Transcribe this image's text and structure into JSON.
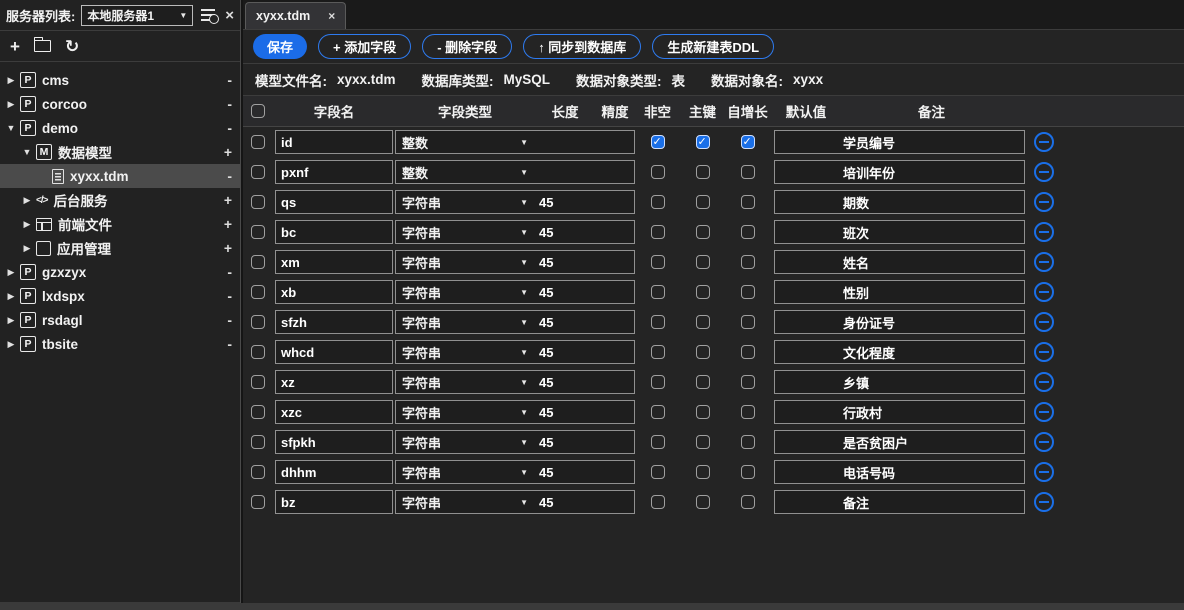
{
  "sidebar": {
    "header_label": "服务器列表:",
    "server_select": "本地服务器1",
    "close_label": "×",
    "tools": {
      "add": "+",
      "refresh": "↻"
    },
    "tree": [
      {
        "key": "cms",
        "label": "cms",
        "icon": "P",
        "level": 0,
        "arrow": "right",
        "action": "-"
      },
      {
        "key": "corcoo",
        "label": "corcoo",
        "icon": "P",
        "level": 0,
        "arrow": "right",
        "action": "-"
      },
      {
        "key": "demo",
        "label": "demo",
        "icon": "P",
        "level": 0,
        "arrow": "down",
        "action": "-"
      },
      {
        "key": "data-model",
        "label": "数据模型",
        "icon": "M",
        "level": 1,
        "arrow": "down",
        "action": "+"
      },
      {
        "key": "xyxx-tdm",
        "label": "xyxx.tdm",
        "icon": "doc",
        "level": 2,
        "arrow": "none",
        "action": "-",
        "selected": true
      },
      {
        "key": "backend-service",
        "label": "后台服务",
        "icon": "code",
        "level": 1,
        "arrow": "right",
        "action": "+"
      },
      {
        "key": "frontend-files",
        "label": "前端文件",
        "icon": "layout",
        "level": 1,
        "arrow": "right",
        "action": "+"
      },
      {
        "key": "app-management",
        "label": "应用管理",
        "icon": "grid",
        "level": 1,
        "arrow": "right",
        "action": "+"
      },
      {
        "key": "gzxzyx",
        "label": "gzxzyx",
        "icon": "P",
        "level": 0,
        "arrow": "right",
        "action": "-"
      },
      {
        "key": "lxdspx",
        "label": "lxdspx",
        "icon": "P",
        "level": 0,
        "arrow": "right",
        "action": "-"
      },
      {
        "key": "rsdagl",
        "label": "rsdagl",
        "icon": "P",
        "level": 0,
        "arrow": "right",
        "action": "-"
      },
      {
        "key": "tbsite",
        "label": "tbsite",
        "icon": "P",
        "level": 0,
        "arrow": "right",
        "action": "-"
      }
    ]
  },
  "tab": {
    "title": "xyxx.tdm",
    "close": "×"
  },
  "toolbar": {
    "save": "保存",
    "add_field": "+ 添加字段",
    "delete_field": "- 删除字段",
    "sync_db": "↑ 同步到数据库",
    "gen_ddl": "生成新建表DDL"
  },
  "info": [
    {
      "label": "模型文件名:",
      "value": "xyxx.tdm"
    },
    {
      "label": "数据库类型:",
      "value": "MySQL"
    },
    {
      "label": "数据对象类型:",
      "value": "表"
    },
    {
      "label": "数据对象名:",
      "value": "xyxx"
    }
  ],
  "table": {
    "headers": [
      "字段名",
      "字段类型",
      "长度",
      "精度",
      "非空",
      "主键",
      "自增长",
      "默认值",
      "备注"
    ],
    "fields": [
      {
        "name": "id",
        "type": "整数",
        "length": "",
        "precision": "",
        "not_null": true,
        "primary_key": true,
        "auto_increment": true,
        "default": "",
        "remark": "学员编号"
      },
      {
        "name": "pxnf",
        "type": "整数",
        "length": "",
        "precision": "",
        "not_null": false,
        "primary_key": false,
        "auto_increment": false,
        "default": "",
        "remark": "培训年份"
      },
      {
        "name": "qs",
        "type": "字符串",
        "length": "45",
        "precision": "",
        "not_null": false,
        "primary_key": false,
        "auto_increment": false,
        "default": "",
        "remark": "期数"
      },
      {
        "name": "bc",
        "type": "字符串",
        "length": "45",
        "precision": "",
        "not_null": false,
        "primary_key": false,
        "auto_increment": false,
        "default": "",
        "remark": "班次"
      },
      {
        "name": "xm",
        "type": "字符串",
        "length": "45",
        "precision": "",
        "not_null": false,
        "primary_key": false,
        "auto_increment": false,
        "default": "",
        "remark": "姓名"
      },
      {
        "name": "xb",
        "type": "字符串",
        "length": "45",
        "precision": "",
        "not_null": false,
        "primary_key": false,
        "auto_increment": false,
        "default": "",
        "remark": "性别"
      },
      {
        "name": "sfzh",
        "type": "字符串",
        "length": "45",
        "precision": "",
        "not_null": false,
        "primary_key": false,
        "auto_increment": false,
        "default": "",
        "remark": "身份证号"
      },
      {
        "name": "whcd",
        "type": "字符串",
        "length": "45",
        "precision": "",
        "not_null": false,
        "primary_key": false,
        "auto_increment": false,
        "default": "",
        "remark": "文化程度"
      },
      {
        "name": "xz",
        "type": "字符串",
        "length": "45",
        "precision": "",
        "not_null": false,
        "primary_key": false,
        "auto_increment": false,
        "default": "",
        "remark": "乡镇"
      },
      {
        "name": "xzc",
        "type": "字符串",
        "length": "45",
        "precision": "",
        "not_null": false,
        "primary_key": false,
        "auto_increment": false,
        "default": "",
        "remark": "行政村"
      },
      {
        "name": "sfpkh",
        "type": "字符串",
        "length": "45",
        "precision": "",
        "not_null": false,
        "primary_key": false,
        "auto_increment": false,
        "default": "",
        "remark": "是否贫困户"
      },
      {
        "name": "dhhm",
        "type": "字符串",
        "length": "45",
        "precision": "",
        "not_null": false,
        "primary_key": false,
        "auto_increment": false,
        "default": "",
        "remark": "电话号码"
      },
      {
        "name": "bz",
        "type": "字符串",
        "length": "45",
        "precision": "",
        "not_null": false,
        "primary_key": false,
        "auto_increment": false,
        "default": "",
        "remark": "备注"
      }
    ]
  },
  "colors": {
    "accent": "#1a6fe8",
    "selected_row": "#4b4b4b"
  }
}
